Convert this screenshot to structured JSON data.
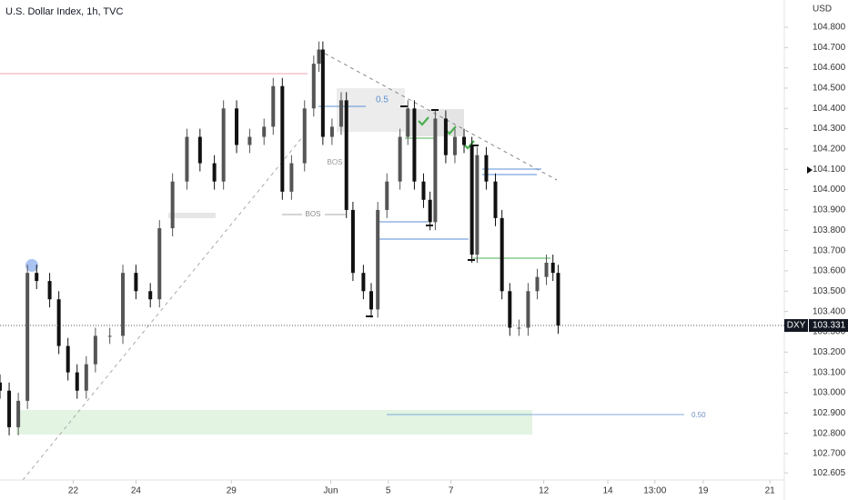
{
  "chart_data": {
    "type": "candlestick",
    "title": "U.S. Dollar Index, 1h, TVC",
    "y_axis_label": "USD",
    "symbol": "DXY",
    "last_price": 103.331,
    "annotations": [
      "0.5",
      "BOS",
      "BOS",
      "0.50"
    ],
    "xlim": [
      0,
      600
    ],
    "xticks": [
      {
        "value": 56,
        "label": "22"
      },
      {
        "value": 104,
        "label": "24"
      },
      {
        "value": 177,
        "label": "29"
      },
      {
        "value": 253,
        "label": "Jun"
      },
      {
        "value": 297,
        "label": "5"
      },
      {
        "value": 345,
        "label": "7"
      },
      {
        "value": 416,
        "label": "12"
      },
      {
        "value": 465,
        "label": "14"
      },
      {
        "value": 501,
        "label": "13:00"
      },
      {
        "value": 538,
        "label": "19"
      },
      {
        "value": 589,
        "label": "21"
      }
    ],
    "ylim": [
      102.57,
      104.934
    ],
    "yticks": [
      {
        "value": 104.8,
        "label": "104.800"
      },
      {
        "value": 104.7,
        "label": "104.700"
      },
      {
        "value": 104.6,
        "label": "104.600"
      },
      {
        "value": 104.5,
        "label": "104.500"
      },
      {
        "value": 104.4,
        "label": "104.400"
      },
      {
        "value": 104.3,
        "label": "104.300"
      },
      {
        "value": 104.2,
        "label": "104.200"
      },
      {
        "value": 104.1,
        "label": "104.100"
      },
      {
        "value": 104.0,
        "label": "104.000"
      },
      {
        "value": 103.9,
        "label": "103.900"
      },
      {
        "value": 103.8,
        "label": "103.800"
      },
      {
        "value": 103.7,
        "label": "103.700"
      },
      {
        "value": 103.6,
        "label": "103.600"
      },
      {
        "value": 103.5,
        "label": "103.500"
      },
      {
        "value": 103.4,
        "label": "103.400"
      },
      {
        "value": 103.3,
        "label": "103.300"
      },
      {
        "value": 103.2,
        "label": "103.200"
      },
      {
        "value": 103.1,
        "label": "103.100"
      },
      {
        "value": 103.0,
        "label": "103.000"
      },
      {
        "value": 102.9,
        "label": "102.900"
      },
      {
        "value": 102.8,
        "label": "102.800"
      },
      {
        "value": 102.7,
        "label": "102.700"
      },
      {
        "value": 102.605,
        "label": "102.605"
      }
    ],
    "up_color": "#555555",
    "down_color": "#111111",
    "x": [
      0,
      7,
      14,
      21,
      28,
      38,
      45,
      52,
      59,
      66,
      73,
      84,
      94,
      104,
      115,
      122,
      132,
      143,
      153,
      164,
      171,
      181,
      191,
      202,
      209,
      216,
      223,
      233,
      240,
      244,
      247,
      254,
      261,
      265,
      270,
      278,
      284,
      289,
      296,
      306,
      312,
      317,
      324,
      329,
      333,
      341,
      348,
      355,
      361,
      365,
      372,
      379,
      384,
      390,
      397,
      404,
      411,
      418,
      423,
      427
    ],
    "open": [
      103.05,
      103.01,
      102.83,
      102.96,
      103.59,
      103.55,
      103.46,
      103.23,
      103.1,
      103.01,
      103.14,
      103.28,
      103.28,
      103.59,
      103.5,
      103.46,
      103.81,
      104.04,
      104.26,
      104.13,
      104.04,
      104.4,
      104.22,
      104.26,
      104.31,
      104.51,
      103.99,
      104.13,
      104.4,
      104.62,
      104.69,
      104.26,
      104.31,
      104.44,
      103.9,
      103.59,
      103.5,
      103.41,
      103.9,
      104.04,
      104.26,
      104.4,
      104.04,
      103.95,
      103.84,
      104.35,
      104.17,
      104.26,
      104.22,
      103.68,
      104.17,
      104.04,
      103.86,
      103.5,
      103.32,
      103.32,
      103.5,
      103.57,
      103.64,
      103.59
    ],
    "high": [
      103.09,
      103.05,
      103.0,
      103.63,
      103.63,
      103.59,
      103.5,
      103.27,
      103.14,
      103.18,
      103.32,
      103.32,
      103.63,
      103.63,
      103.54,
      103.85,
      104.08,
      104.3,
      104.3,
      104.17,
      104.44,
      104.44,
      104.3,
      104.35,
      104.55,
      104.55,
      104.17,
      104.44,
      104.66,
      104.73,
      104.73,
      104.35,
      104.48,
      104.48,
      103.94,
      103.63,
      103.54,
      103.94,
      104.08,
      104.3,
      104.44,
      104.44,
      104.08,
      103.99,
      104.39,
      104.39,
      104.3,
      104.3,
      104.26,
      104.21,
      104.21,
      104.08,
      103.9,
      103.54,
      103.36,
      103.54,
      103.61,
      103.68,
      103.68,
      103.63
    ],
    "low": [
      102.97,
      102.79,
      102.79,
      102.92,
      103.51,
      103.42,
      103.19,
      103.06,
      102.97,
      102.97,
      103.1,
      103.24,
      103.24,
      103.46,
      103.42,
      103.42,
      103.77,
      104.0,
      104.09,
      104.0,
      104.0,
      104.18,
      104.18,
      104.22,
      104.27,
      103.95,
      103.95,
      104.09,
      104.36,
      104.58,
      104.22,
      104.22,
      104.27,
      103.86,
      103.55,
      103.46,
      103.37,
      103.37,
      103.86,
      104.0,
      104.22,
      104.0,
      103.91,
      103.8,
      103.8,
      104.13,
      104.13,
      104.18,
      103.64,
      103.64,
      104.0,
      103.82,
      103.46,
      103.28,
      103.28,
      103.28,
      103.46,
      103.53,
      103.55,
      103.29
    ],
    "close": [
      103.01,
      102.83,
      102.96,
      103.59,
      103.55,
      103.46,
      103.23,
      103.1,
      103.01,
      103.14,
      103.28,
      103.28,
      103.59,
      103.5,
      103.46,
      103.81,
      104.04,
      104.26,
      104.13,
      104.04,
      104.4,
      104.22,
      104.26,
      104.31,
      104.51,
      103.99,
      104.13,
      104.4,
      104.62,
      104.69,
      104.26,
      104.31,
      104.44,
      103.9,
      103.59,
      103.5,
      103.41,
      103.9,
      104.04,
      104.26,
      104.4,
      104.04,
      103.95,
      103.84,
      104.35,
      104.17,
      104.26,
      104.22,
      103.68,
      104.17,
      104.04,
      103.86,
      103.5,
      103.32,
      103.32,
      103.5,
      103.57,
      103.64,
      103.59,
      103.331
    ]
  }
}
